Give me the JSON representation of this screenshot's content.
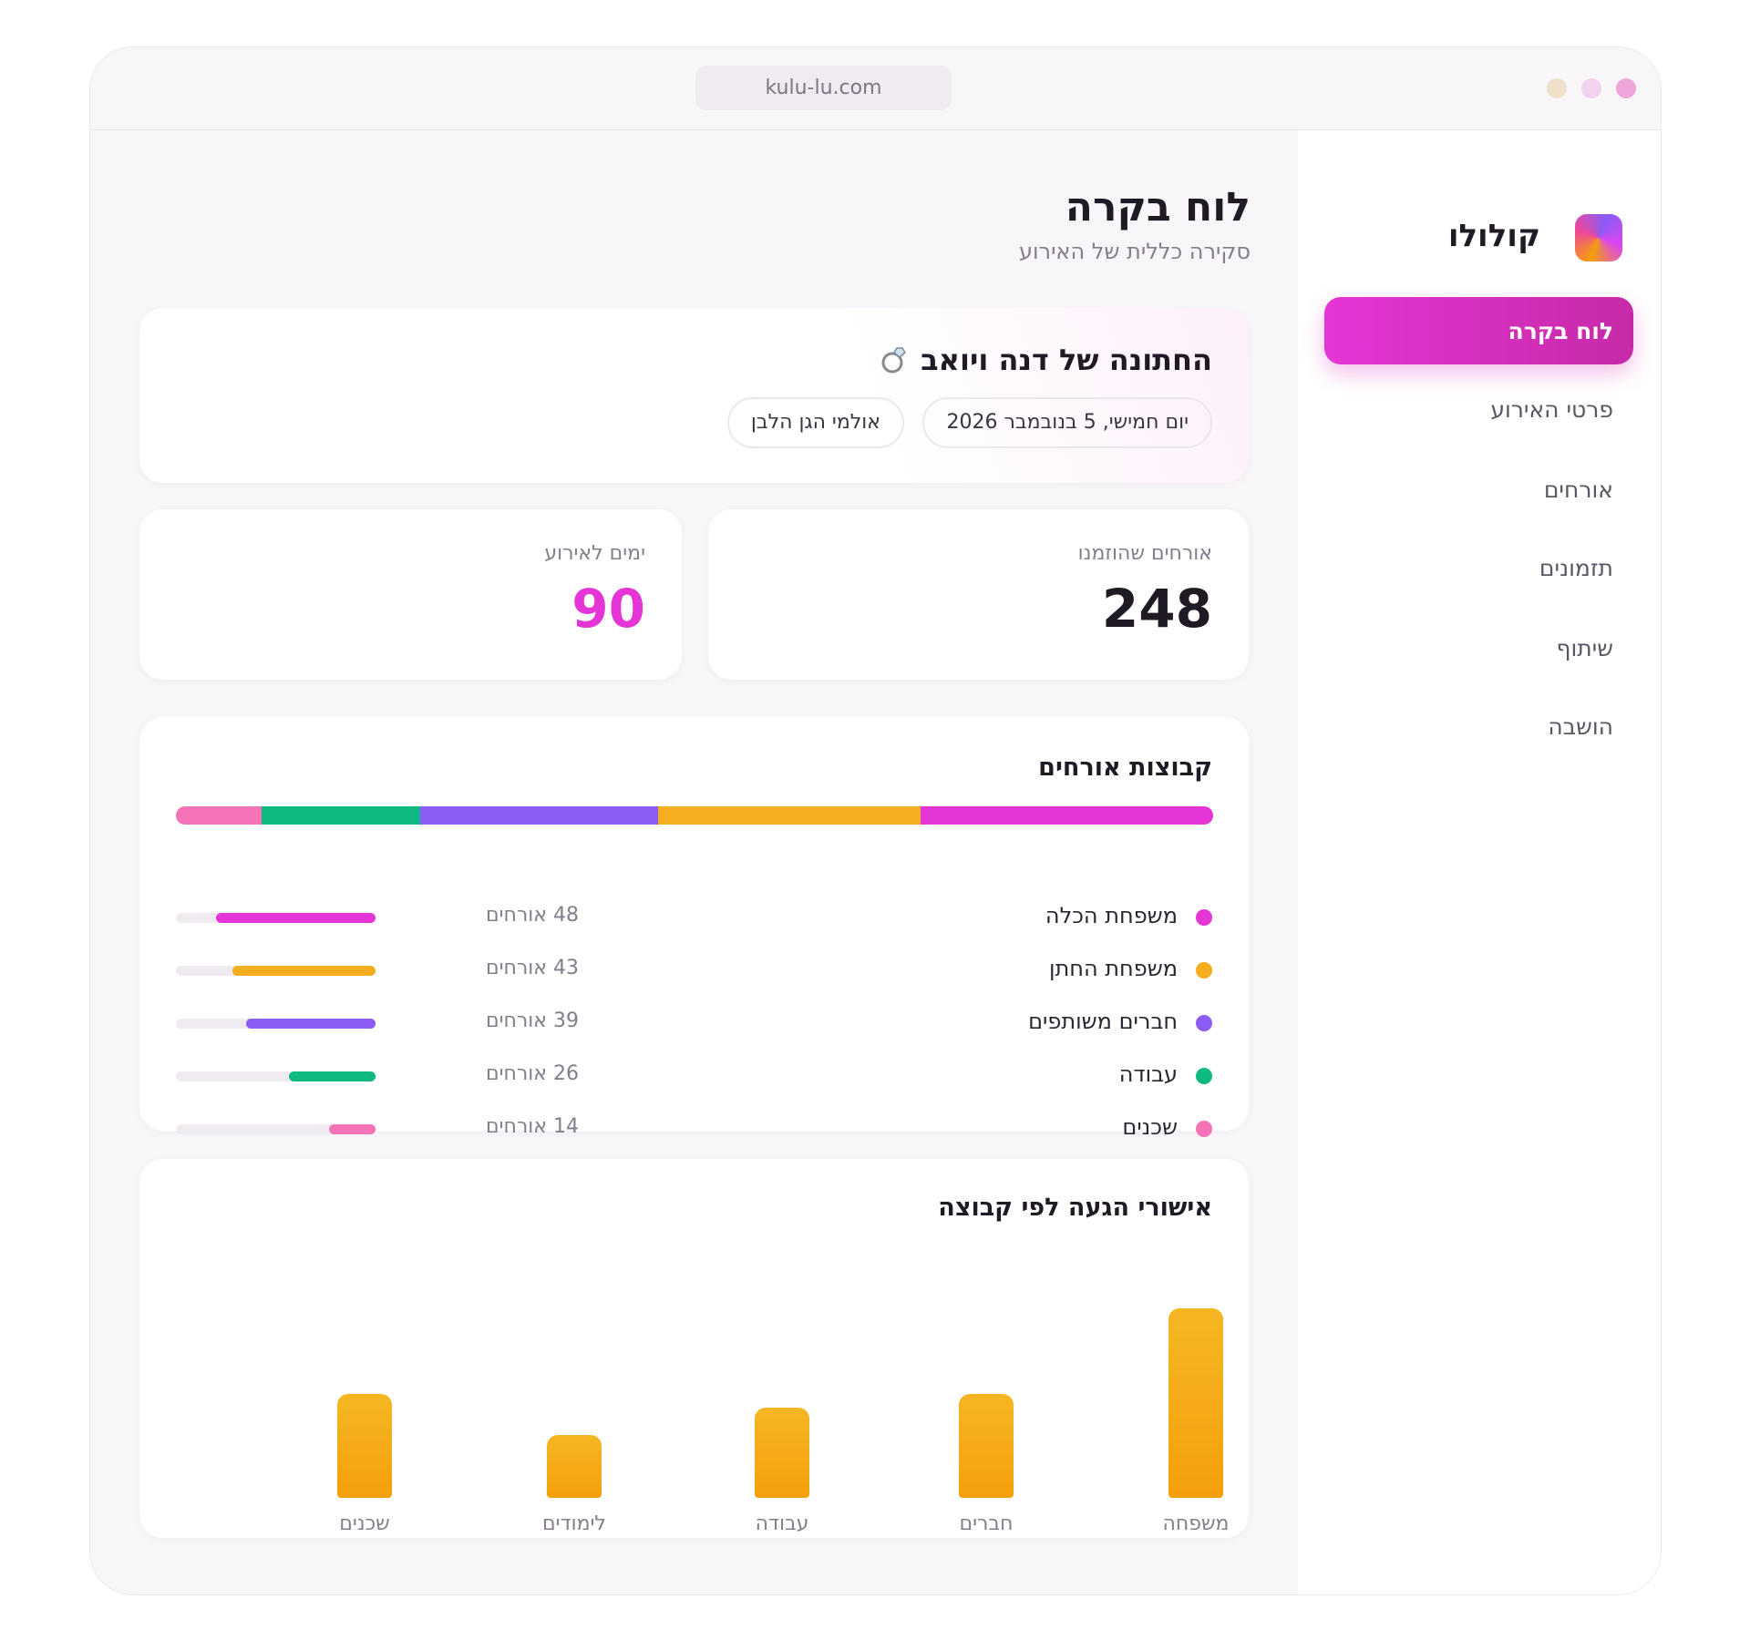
{
  "browser": {
    "url": "kulu-lu.com"
  },
  "sidebar": {
    "brand": "קולולו",
    "nav": [
      "לוח בקרה",
      "פרטי האירוע",
      "אורחים",
      "תזמונים",
      "שיתוף",
      "הושבה"
    ]
  },
  "header": {
    "title": "לוח בקרה",
    "subtitle": "סקירה כללית של האירוע"
  },
  "event": {
    "title": "החתונה של דנה ויואב",
    "chips": [
      "יום חמישי, 5 בנובמבר 2026",
      "אולמי הגן הלבן"
    ]
  },
  "stats": [
    {
      "label": "אורחים שהוזמנו",
      "value": 248
    },
    {
      "label": "ימים לאירוע",
      "value": 90
    }
  ],
  "guest_groups": {
    "title": "קבוצות אורחים",
    "categories": [
      "משפחת הכלה",
      "משפחת החתן",
      "חברים משותפים",
      "עבודה",
      "שכנים"
    ],
    "values": [
      48,
      43,
      39,
      26,
      14
    ],
    "value_labels": [
      "48 אורחים",
      "43 אורחים",
      "39 אורחים",
      "26 אורחים",
      "14 אורחים"
    ],
    "colors": [
      "#e535d6",
      "#f5ae1f",
      "#8b5cf6",
      "#10b981",
      "#f472b6"
    ]
  },
  "chart_data": {
    "type": "bar",
    "title": "אישורי הגעה לפי קבוצה",
    "categories": [
      "משפחה",
      "חברים",
      "עבודה",
      "לימודים",
      "שכנים"
    ],
    "values": [
      42,
      23,
      20,
      14,
      23
    ],
    "color": "#f5a916"
  }
}
